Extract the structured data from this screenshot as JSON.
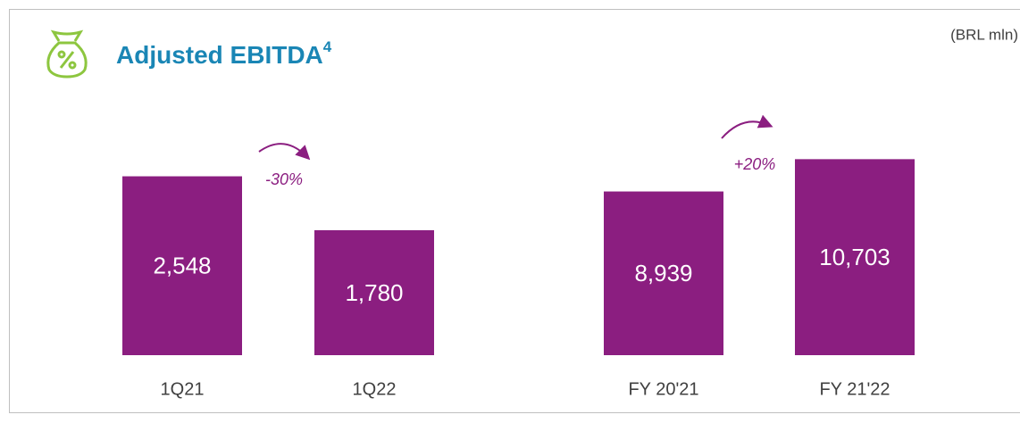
{
  "header": {
    "title": "Adjusted EBITDA",
    "title_superscript": "4",
    "unit": "(BRL mln)"
  },
  "chart_data": [
    {
      "type": "bar",
      "categories": [
        "1Q21",
        "1Q22"
      ],
      "values": [
        2548,
        1780
      ],
      "value_labels": [
        "2,548",
        "1,780"
      ],
      "color": "#8b1e80",
      "ylim": [
        0,
        3000
      ],
      "annotation": "-30%"
    },
    {
      "type": "bar",
      "categories": [
        "FY 20'21",
        "FY 21'22"
      ],
      "values": [
        8939,
        10703
      ],
      "value_labels": [
        "8,939",
        "10,703"
      ],
      "color": "#8b1e80",
      "ylim": [
        0,
        11500
      ],
      "annotation": "+20%"
    }
  ]
}
